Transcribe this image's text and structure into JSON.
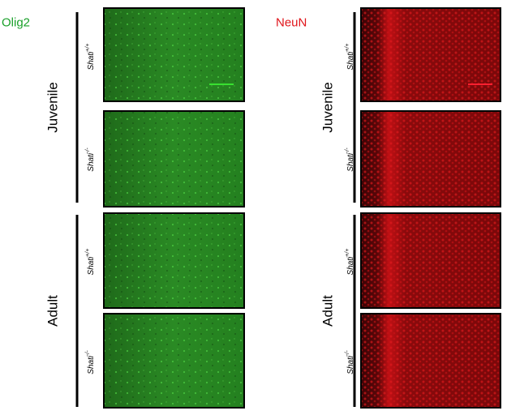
{
  "columns": [
    {
      "marker": "Olig2",
      "groups": [
        {
          "age": "Juvenile",
          "genotypes": [
            {
              "gene": "Shati",
              "sup": "+/+"
            },
            {
              "gene": "Shati",
              "sup": "-/-"
            }
          ]
        },
        {
          "age": "Adult",
          "genotypes": [
            {
              "gene": "Shati",
              "sup": "+/+"
            },
            {
              "gene": "Shati",
              "sup": "-/-"
            }
          ]
        }
      ]
    },
    {
      "marker": "NeuN",
      "groups": [
        {
          "age": "Juvenile",
          "genotypes": [
            {
              "gene": "Shati",
              "sup": "+/+"
            },
            {
              "gene": "Shati",
              "sup": "-/-"
            }
          ]
        },
        {
          "age": "Adult",
          "genotypes": [
            {
              "gene": "Shati",
              "sup": "+/+"
            },
            {
              "gene": "Shati",
              "sup": "-/-"
            }
          ]
        }
      ]
    }
  ]
}
